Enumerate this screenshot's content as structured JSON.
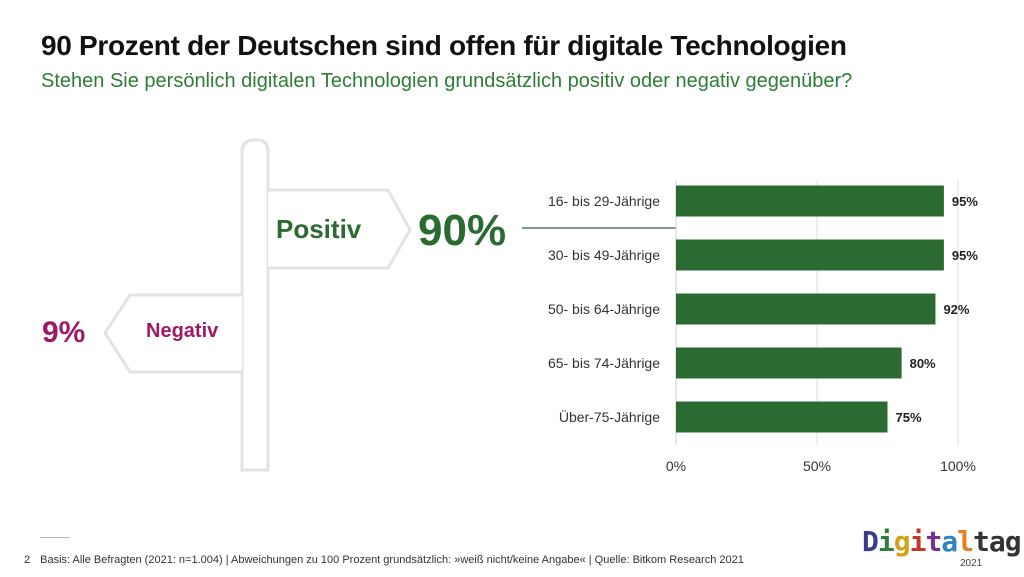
{
  "header": {
    "title": "90 Prozent der Deutschen sind offen für digitale Technologien",
    "subtitle": "Stehen Sie persönlich digitalen Technologien grundsätzlich positiv oder negativ gegenüber?"
  },
  "signpost": {
    "positive_label": "Positiv",
    "positive_value": "90%",
    "negative_label": "Negativ",
    "negative_value": "9%"
  },
  "chart_data": {
    "type": "bar",
    "orientation": "horizontal",
    "categories": [
      "16- bis 29-Jährige",
      "30- bis 49-Jährige",
      "50- bis 64-Jährige",
      "65- bis 74-Jährige",
      "Über-75-Jährige"
    ],
    "values": [
      95,
      95,
      92,
      80,
      75
    ],
    "value_labels": [
      "95%",
      "95%",
      "92%",
      "80%",
      "75%"
    ],
    "xlim": [
      0,
      100
    ],
    "xticks": [
      0,
      50,
      100
    ],
    "xtick_labels": [
      "0%",
      "50%",
      "100%"
    ],
    "grid": true,
    "legend": "none",
    "bar_color": "#2b6b32"
  },
  "footer": {
    "page_number": "2",
    "text": "Basis: Alle Befragten (2021: n=1.004) | Abweichungen zu 100 Prozent grundsätzlich: »weiß nicht/keine Angabe« | Quelle: Bitkom Research 2021"
  },
  "logo": {
    "letters": [
      "D",
      "i",
      "g",
      "i",
      "t",
      "a",
      "l",
      "t",
      "a",
      "g"
    ],
    "colors": [
      "#3b3b8f",
      "#2f7f3c",
      "#d4a017",
      "#c0392b",
      "#7b2f8f",
      "#2e86c1",
      "#e67e22",
      "#333333",
      "#333333",
      "#333333"
    ],
    "year": "2021"
  }
}
